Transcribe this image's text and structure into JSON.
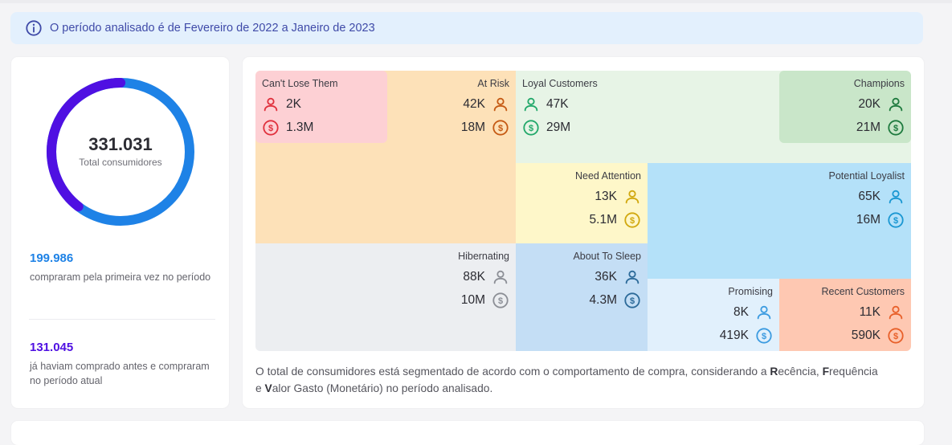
{
  "banner": {
    "text": "O período analisado é de Fevereiro de 2022 a Janeiro de 2023",
    "icon": "info-icon",
    "color": "#3f4aa8"
  },
  "summary": {
    "total": "331.031",
    "total_label": "Total consumidores",
    "first_time_fraction": 0.604,
    "first_time": {
      "value": "199.986",
      "label": "compraram pela primeira vez no período",
      "color": "#1e82e6"
    },
    "returning": {
      "value": "131.045",
      "label": "já haviam comprado antes e compraram no período atual",
      "color": "#4f10e2"
    }
  },
  "segments": [
    {
      "key": "cant_lose_them",
      "name": "Can't Lose Them",
      "customers": "2K",
      "revenue": "1.3M",
      "bg": "#fdd0d4",
      "icon_color": "#e0313d"
    },
    {
      "key": "at_risk",
      "name": "At Risk",
      "customers": "42K",
      "revenue": "18M",
      "bg": "#fde1b8",
      "icon_color": "#c55a14"
    },
    {
      "key": "loyal_customers",
      "name": "Loyal Customers",
      "customers": "47K",
      "revenue": "29M",
      "bg": "#e7f4e6",
      "icon_color": "#22a86a"
    },
    {
      "key": "champions",
      "name": "Champions",
      "customers": "20K",
      "revenue": "21M",
      "bg": "#c9e6c9",
      "icon_color": "#1e7a3e"
    },
    {
      "key": "need_attention",
      "name": "Need Attention",
      "customers": "13K",
      "revenue": "5.1M",
      "bg": "#fef7c9",
      "icon_color": "#d1a80e"
    },
    {
      "key": "potential_loyalist",
      "name": "Potential Loyalist",
      "customers": "65K",
      "revenue": "16M",
      "bg": "#b4e1f9",
      "icon_color": "#1a97d2"
    },
    {
      "key": "hibernating",
      "name": "Hibernating",
      "customers": "88K",
      "revenue": "10M",
      "bg": "#eceef1",
      "icon_color": "#8c8f96"
    },
    {
      "key": "about_to_sleep",
      "name": "About To Sleep",
      "customers": "36K",
      "revenue": "4.3M",
      "bg": "#c4def5",
      "icon_color": "#2c6a99"
    },
    {
      "key": "promising",
      "name": "Promising",
      "customers": "8K",
      "revenue": "419K",
      "bg": "#e1f0fc",
      "icon_color": "#3c9be0"
    },
    {
      "key": "recent_customers",
      "name": "Recent Customers",
      "customers": "11K",
      "revenue": "590K",
      "bg": "#fec8b2",
      "icon_color": "#e8602a"
    }
  ],
  "description": {
    "part1": "O total de consumidores está segmentado de acordo com o comportamento de compra, considerando a ",
    "r": "R",
    "r_rest": "ecência, ",
    "f": "F",
    "f_rest": "requência e ",
    "v": "V",
    "v_rest": "alor Gasto (Monetário) no período analisado."
  }
}
